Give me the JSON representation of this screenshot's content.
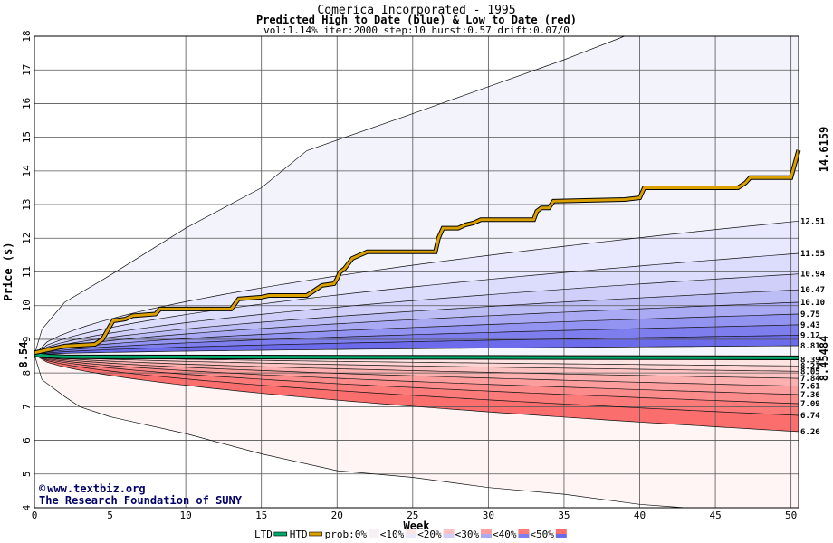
{
  "chart_data": {
    "type": "area",
    "title": "Comerica Incorporated - 1995",
    "subtitle": "Predicted High to Date (blue) &  Low to Date (red)",
    "params": "vol:1.14% iter:2000 step:10 hurst:0.57 drift:0.07/0",
    "xlabel": "Week",
    "ylabel": "Price ($)",
    "xlim": [
      0,
      50.5
    ],
    "ylim": [
      4,
      18
    ],
    "xticks": [
      "0",
      "5",
      "10",
      "15",
      "20",
      "25",
      "30",
      "35",
      "40",
      "45",
      "50"
    ],
    "yticks": [
      "4",
      "5",
      "6",
      "7",
      "8",
      "9",
      "10",
      "11",
      "12",
      "13",
      "14",
      "15",
      "16",
      "17",
      "18"
    ],
    "start_value": 8.54,
    "start_label": "8.54",
    "high_bands_end": [
      12.51,
      11.55,
      10.94,
      10.47,
      10.1,
      9.75,
      9.43,
      9.12,
      8.81
    ],
    "low_bands_end": [
      8.39,
      8.21,
      8.05,
      7.84,
      7.61,
      7.36,
      7.09,
      6.74,
      6.26
    ],
    "band_labels_high": [
      "12.51",
      "11.55",
      "10.94",
      "10.47",
      "10.10",
      "9.75",
      "9.43",
      "9.12",
      "8.81"
    ],
    "band_labels_low": [
      "8.39",
      "8.21",
      "8.05",
      "7.84",
      "7.61",
      "7.36",
      "7.09",
      "6.74",
      "6.26"
    ],
    "outer_high": [
      [
        0,
        8.54
      ],
      [
        0.5,
        9.3
      ],
      [
        2,
        10.1
      ],
      [
        5,
        10.9
      ],
      [
        10,
        12.3
      ],
      [
        15,
        13.5
      ],
      [
        18,
        14.6
      ],
      [
        25,
        15.7
      ],
      [
        30,
        16.5
      ],
      [
        35,
        17.3
      ],
      [
        39,
        18.0
      ]
    ],
    "outer_low": [
      [
        0,
        8.54
      ],
      [
        0.5,
        7.8
      ],
      [
        2,
        7.3
      ],
      [
        3,
        7.0
      ],
      [
        5,
        6.7
      ],
      [
        10,
        6.2
      ],
      [
        15,
        5.6
      ],
      [
        20,
        5.1
      ],
      [
        25,
        4.9
      ],
      [
        30,
        4.6
      ],
      [
        35,
        4.4
      ],
      [
        40,
        4.1
      ],
      [
        43,
        4.0
      ]
    ],
    "htd_series": [
      [
        0,
        8.6
      ],
      [
        1,
        8.7
      ],
      [
        2,
        8.8
      ],
      [
        4,
        8.85
      ],
      [
        4.5,
        9.0
      ],
      [
        5,
        9.4
      ],
      [
        5.2,
        9.55
      ],
      [
        6,
        9.6
      ],
      [
        6.5,
        9.7
      ],
      [
        8,
        9.75
      ],
      [
        8.3,
        9.9
      ],
      [
        13,
        9.9
      ],
      [
        13.5,
        10.2
      ],
      [
        15,
        10.25
      ],
      [
        15.5,
        10.3
      ],
      [
        18,
        10.3
      ],
      [
        18.5,
        10.45
      ],
      [
        19,
        10.6
      ],
      [
        19.8,
        10.65
      ],
      [
        20,
        10.8
      ],
      [
        20.2,
        11.0
      ],
      [
        20.5,
        11.1
      ],
      [
        21,
        11.4
      ],
      [
        21.5,
        11.5
      ],
      [
        22,
        11.6
      ],
      [
        26.5,
        11.6
      ],
      [
        26.7,
        12.0
      ],
      [
        27,
        12.3
      ],
      [
        28,
        12.3
      ],
      [
        28.5,
        12.4
      ],
      [
        29,
        12.45
      ],
      [
        29.5,
        12.55
      ],
      [
        33,
        12.55
      ],
      [
        33.2,
        12.8
      ],
      [
        33.5,
        12.9
      ],
      [
        34,
        12.9
      ],
      [
        34.3,
        13.1
      ],
      [
        39,
        13.15
      ],
      [
        40,
        13.2
      ],
      [
        40.3,
        13.5
      ],
      [
        46.5,
        13.5
      ],
      [
        47,
        13.65
      ],
      [
        47.3,
        13.8
      ],
      [
        50,
        13.8
      ],
      [
        50.5,
        14.62
      ]
    ],
    "ltd_series": [
      [
        0,
        8.55
      ],
      [
        1,
        8.5
      ],
      [
        2,
        8.48
      ],
      [
        50.5,
        8.45
      ]
    ],
    "htd_end_label": "14.6159",
    "ltd_end_label": "8.45484",
    "legend": {
      "ltd": "LTD",
      "htd": "HTD",
      "prob": "prob:0%",
      "items": [
        "<10%",
        "<20%",
        "<30%",
        "<40%",
        "<50%"
      ]
    },
    "colors": {
      "htd": "#d9a000",
      "ltd": "#00a86b",
      "htd_label": "#8b6a00",
      "ltd_label": "#008060",
      "high_bands": [
        "#f5f5ff",
        "#e8e8ff",
        "#dcdcfc",
        "#cfcff9",
        "#bdbdf6",
        "#a9a9f4",
        "#9393f1",
        "#7e7eee",
        "#6b6beb"
      ],
      "low_bands": [
        "#fff3f3",
        "#ffe4e4",
        "#fed4d4",
        "#fdc3c3",
        "#fdb0b0",
        "#fc9e9e",
        "#fc8b8b",
        "#fb7a7a",
        "#fb6e6e"
      ],
      "outer_hi": "#f3f3fb",
      "outer_lo": "#fff5f5"
    },
    "legend_position": "bottom",
    "grid": true
  },
  "credit": {
    "copyright": "©",
    "site": "www.textbiz.org",
    "org": "The Research Foundation of SUNY"
  }
}
